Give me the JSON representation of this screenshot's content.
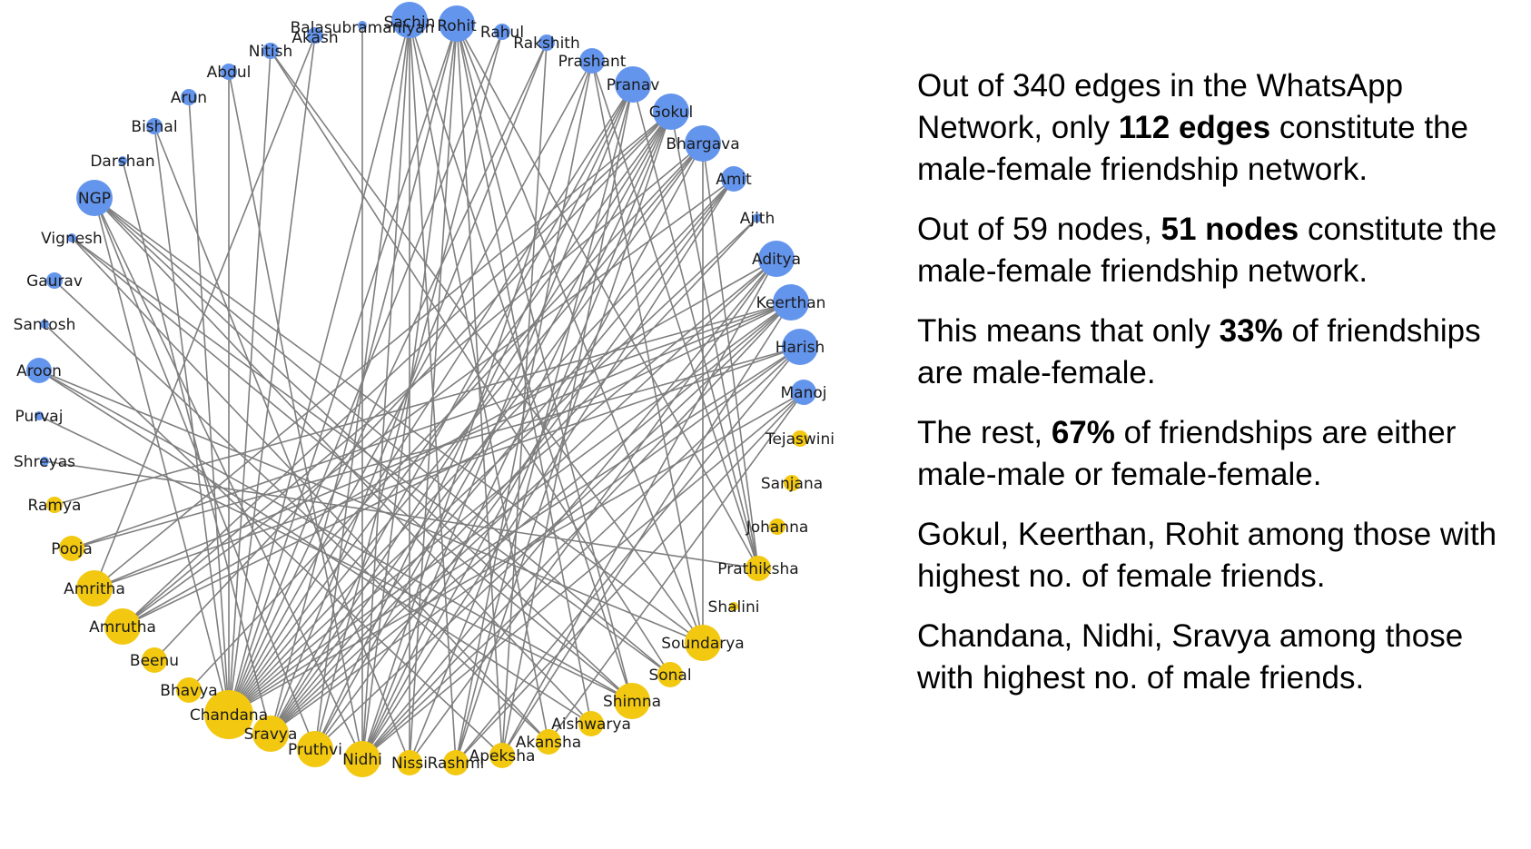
{
  "colors": {
    "male": "#6495ED",
    "female": "#F2C811",
    "edge": "#7f7f7f"
  },
  "nodes": [
    {
      "id": "Sachin",
      "label": "Sachin",
      "group": "male",
      "size": "large"
    },
    {
      "id": "Rohit",
      "label": "Rohit",
      "group": "male",
      "size": "large"
    },
    {
      "id": "Rahul",
      "label": "Rahul",
      "group": "male",
      "size": "small"
    },
    {
      "id": "Rakshith",
      "label": "Rakshith",
      "group": "male",
      "size": "small"
    },
    {
      "id": "Prashant",
      "label": "Prashant",
      "group": "male",
      "size": "medium"
    },
    {
      "id": "Pranav",
      "label": "Pranav",
      "group": "male",
      "size": "large"
    },
    {
      "id": "Gokul",
      "label": "Gokul",
      "group": "male",
      "size": "large"
    },
    {
      "id": "Bhargava",
      "label": "Bhargava",
      "group": "male",
      "size": "large"
    },
    {
      "id": "Amit",
      "label": "Amit",
      "group": "male",
      "size": "medium"
    },
    {
      "id": "Ajith",
      "label": "Ajith",
      "group": "male",
      "size": "tiny"
    },
    {
      "id": "Aditya",
      "label": "Aditya",
      "group": "male",
      "size": "large"
    },
    {
      "id": "Keerthan",
      "label": "Keerthan",
      "group": "male",
      "size": "large"
    },
    {
      "id": "Harish",
      "label": "Harish",
      "group": "male",
      "size": "large"
    },
    {
      "id": "Manoj",
      "label": "Manoj",
      "group": "male",
      "size": "medium"
    },
    {
      "id": "Tejaswini",
      "label": "Tejaswini",
      "group": "female",
      "size": "small"
    },
    {
      "id": "Sanjana",
      "label": "Sanjana",
      "group": "female",
      "size": "small"
    },
    {
      "id": "Johanna",
      "label": "Johanna",
      "group": "female",
      "size": "small"
    },
    {
      "id": "Prathiksha",
      "label": "Prathiksha",
      "group": "female",
      "size": "medium"
    },
    {
      "id": "Shalini",
      "label": "Shalini",
      "group": "female",
      "size": "tiny"
    },
    {
      "id": "Soundarya",
      "label": "Soundarya",
      "group": "female",
      "size": "large"
    },
    {
      "id": "Sonal",
      "label": "Sonal",
      "group": "female",
      "size": "medium"
    },
    {
      "id": "Shimna",
      "label": "Shimna",
      "group": "female",
      "size": "large"
    },
    {
      "id": "Aishwarya",
      "label": "Aishwarya",
      "group": "female",
      "size": "medium"
    },
    {
      "id": "Akansha",
      "label": "Akansha",
      "group": "female",
      "size": "medium"
    },
    {
      "id": "Apeksha",
      "label": "Apeksha",
      "group": "female",
      "size": "medium"
    },
    {
      "id": "Rashmi",
      "label": "Rashmi",
      "group": "female",
      "size": "medium"
    },
    {
      "id": "Nissi",
      "label": "Nissi",
      "group": "female",
      "size": "medium"
    },
    {
      "id": "Nidhi",
      "label": "Nidhi",
      "group": "female",
      "size": "large"
    },
    {
      "id": "Pruthvi",
      "label": "Pruthvi",
      "group": "female",
      "size": "large"
    },
    {
      "id": "Sravya",
      "label": "Sravya",
      "group": "female",
      "size": "large"
    },
    {
      "id": "Chandana",
      "label": "Chandana",
      "group": "female",
      "size": "huge"
    },
    {
      "id": "Bhavya",
      "label": "Bhavya",
      "group": "female",
      "size": "medium"
    },
    {
      "id": "Beenu",
      "label": "Beenu",
      "group": "female",
      "size": "medium"
    },
    {
      "id": "Amrutha",
      "label": "Amrutha",
      "group": "female",
      "size": "large"
    },
    {
      "id": "Amritha",
      "label": "Amritha",
      "group": "female",
      "size": "large"
    },
    {
      "id": "Pooja",
      "label": "Pooja",
      "group": "female",
      "size": "medium"
    },
    {
      "id": "Ramya",
      "label": "Ramya",
      "group": "female",
      "size": "small"
    },
    {
      "id": "Shreyas",
      "label": "Shreyas",
      "group": "male",
      "size": "tiny"
    },
    {
      "id": "Purvaj",
      "label": "Purvaj",
      "group": "male",
      "size": "tiny"
    },
    {
      "id": "Aroon",
      "label": "Aroon",
      "group": "male",
      "size": "medium"
    },
    {
      "id": "Santosh",
      "label": "Santosh",
      "group": "male",
      "size": "tiny"
    },
    {
      "id": "Gaurav",
      "label": "Gaurav",
      "group": "male",
      "size": "small"
    },
    {
      "id": "Vignesh",
      "label": "Vignesh",
      "group": "male",
      "size": "tiny"
    },
    {
      "id": "NGP",
      "label": "NGP",
      "group": "male",
      "size": "large"
    },
    {
      "id": "Darshan",
      "label": "Darshan",
      "group": "male",
      "size": "tiny"
    },
    {
      "id": "Bishal",
      "label": "Bishal",
      "group": "male",
      "size": "small"
    },
    {
      "id": "Arun",
      "label": "Arun",
      "group": "male",
      "size": "small"
    },
    {
      "id": "Abdul",
      "label": "Abdul",
      "group": "male",
      "size": "small"
    },
    {
      "id": "Nitish",
      "label": "Nitish",
      "group": "male",
      "size": "small"
    },
    {
      "id": "Akash",
      "label": "Akash",
      "group": "male",
      "size": "small"
    },
    {
      "id": "Balasubramaniyan",
      "label": "Balasubramaniyan",
      "group": "male",
      "size": "tiny"
    }
  ],
  "edges": [
    [
      "Rohit",
      "Chandana"
    ],
    [
      "Rohit",
      "Nidhi"
    ],
    [
      "Rohit",
      "Sravya"
    ],
    [
      "Rohit",
      "Shimna"
    ],
    [
      "Rohit",
      "Soundarya"
    ],
    [
      "Rohit",
      "Nissi"
    ],
    [
      "Rohit",
      "Apeksha"
    ],
    [
      "Rohit",
      "Prathiksha"
    ],
    [
      "Rohit",
      "Aishwarya"
    ],
    [
      "Sachin",
      "Nidhi"
    ],
    [
      "Sachin",
      "Chandana"
    ],
    [
      "Sachin",
      "Pruthvi"
    ],
    [
      "Sachin",
      "Shimna"
    ],
    [
      "Sachin",
      "Rashmi"
    ],
    [
      "Sachin",
      "Akansha"
    ],
    [
      "Sachin",
      "Nissi"
    ],
    [
      "Gokul",
      "Chandana"
    ],
    [
      "Gokul",
      "Nidhi"
    ],
    [
      "Gokul",
      "Sravya"
    ],
    [
      "Gokul",
      "Amrutha"
    ],
    [
      "Gokul",
      "Amritha"
    ],
    [
      "Gokul",
      "Pruthvi"
    ],
    [
      "Gokul",
      "Beenu"
    ],
    [
      "Gokul",
      "Rashmi"
    ],
    [
      "Gokul",
      "Nissi"
    ],
    [
      "Gokul",
      "Prathiksha"
    ],
    [
      "Keerthan",
      "Chandana"
    ],
    [
      "Keerthan",
      "Nidhi"
    ],
    [
      "Keerthan",
      "Amrutha"
    ],
    [
      "Keerthan",
      "Sravya"
    ],
    [
      "Keerthan",
      "Amritha"
    ],
    [
      "Keerthan",
      "Apeksha"
    ],
    [
      "Keerthan",
      "Pruthvi"
    ],
    [
      "Keerthan",
      "Ramya"
    ],
    [
      "Keerthan",
      "Pooja"
    ],
    [
      "Pranav",
      "Chandana"
    ],
    [
      "Pranav",
      "Nidhi"
    ],
    [
      "Pranav",
      "Sravya"
    ],
    [
      "Pranav",
      "Rashmi"
    ],
    [
      "Pranav",
      "Pruthvi"
    ],
    [
      "Pranav",
      "Apeksha"
    ],
    [
      "Pranav",
      "Prathiksha"
    ],
    [
      "Bhargava",
      "Chandana"
    ],
    [
      "Bhargava",
      "Amrutha"
    ],
    [
      "Bhargava",
      "Nidhi"
    ],
    [
      "Bhargava",
      "Sravya"
    ],
    [
      "Bhargava",
      "Bhavya"
    ],
    [
      "Bhargava",
      "Prathiksha"
    ],
    [
      "Bhargava",
      "Soundarya"
    ],
    [
      "Aditya",
      "Chandana"
    ],
    [
      "Aditya",
      "Nidhi"
    ],
    [
      "Aditya",
      "Sravya"
    ],
    [
      "Aditya",
      "Amrutha"
    ],
    [
      "Aditya",
      "Nissi"
    ],
    [
      "Aditya",
      "Apeksha"
    ],
    [
      "Harish",
      "Chandana"
    ],
    [
      "Harish",
      "Sravya"
    ],
    [
      "Harish",
      "Nidhi"
    ],
    [
      "Harish",
      "Amritha"
    ],
    [
      "Harish",
      "Pooja"
    ],
    [
      "Harish",
      "Rashmi"
    ],
    [
      "Amit",
      "Chandana"
    ],
    [
      "Amit",
      "Amrutha"
    ],
    [
      "Amit",
      "Pruthvi"
    ],
    [
      "Amit",
      "Nidhi"
    ],
    [
      "Amit",
      "Sravya"
    ],
    [
      "Manoj",
      "Chandana"
    ],
    [
      "Manoj",
      "Nidhi"
    ],
    [
      "Manoj",
      "Akansha"
    ],
    [
      "Manoj",
      "Rashmi"
    ],
    [
      "Prashant",
      "Chandana"
    ],
    [
      "Prashant",
      "Nidhi"
    ],
    [
      "Prashant",
      "Rashmi"
    ],
    [
      "Prashant",
      "Prathiksha"
    ],
    [
      "Prashant",
      "Soundarya"
    ],
    [
      "Rakshith",
      "Chandana"
    ],
    [
      "Rakshith",
      "Sravya"
    ],
    [
      "Rakshith",
      "Apeksha"
    ],
    [
      "Rahul",
      "Chandana"
    ],
    [
      "Rahul",
      "Pruthvi"
    ],
    [
      "Ajith",
      "Chandana"
    ],
    [
      "Ajith",
      "Sravya"
    ],
    [
      "NGP",
      "Chandana"
    ],
    [
      "NGP",
      "Shimna"
    ],
    [
      "NGP",
      "Soundarya"
    ],
    [
      "NGP",
      "Sonal"
    ],
    [
      "NGP",
      "Nidhi"
    ],
    [
      "NGP",
      "Aishwarya"
    ],
    [
      "NGP",
      "Pruthvi"
    ],
    [
      "Vignesh",
      "Shimna"
    ],
    [
      "Vignesh",
      "Sonal"
    ],
    [
      "Vignesh",
      "Akansha"
    ],
    [
      "Aroon",
      "Shimna"
    ],
    [
      "Aroon",
      "Soundarya"
    ],
    [
      "Aroon",
      "Aishwarya"
    ],
    [
      "Nitish",
      "Chandana"
    ],
    [
      "Nitish",
      "Soundarya"
    ],
    [
      "Nitish",
      "Sonal"
    ],
    [
      "Abdul",
      "Chandana"
    ],
    [
      "Abdul",
      "Nidhi"
    ],
    [
      "Arun",
      "Chandana"
    ],
    [
      "Bishal",
      "Chandana"
    ],
    [
      "Bishal",
      "Nissi"
    ],
    [
      "Akash",
      "Chandana"
    ],
    [
      "Akash",
      "Amritha"
    ],
    [
      "Balasubramaniyan",
      "Nidhi"
    ],
    [
      "Darshan",
      "Sravya"
    ],
    [
      "Gaurav",
      "Akansha"
    ],
    [
      "Shreyas",
      "Prathiksha"
    ],
    [
      "Purvaj",
      "Shimna"
    ],
    [
      "Santosh",
      "Apeksha"
    ]
  ],
  "text": {
    "p1_a": "Out of 340 edges in the WhatsApp Network, only ",
    "p1_b": "112 edges",
    "p1_c": " constitute the male-female friendship network.",
    "p2_a": "Out of 59 nodes, ",
    "p2_b": "51 nodes",
    "p2_c": " constitute the male-female friendship network.",
    "p3_a": "This means that only ",
    "p3_b": "33%",
    "p3_c": " of friendships are male-female.",
    "p4_a": "The rest, ",
    "p4_b": "67%",
    "p4_c": " of friendships are either male-male or female-female.",
    "p5": "Gokul, Keerthan, Rohit among those with highest no. of female friends.",
    "p6": "Chandana, Nidhi, Sravya among those with highest no. of male friends."
  }
}
